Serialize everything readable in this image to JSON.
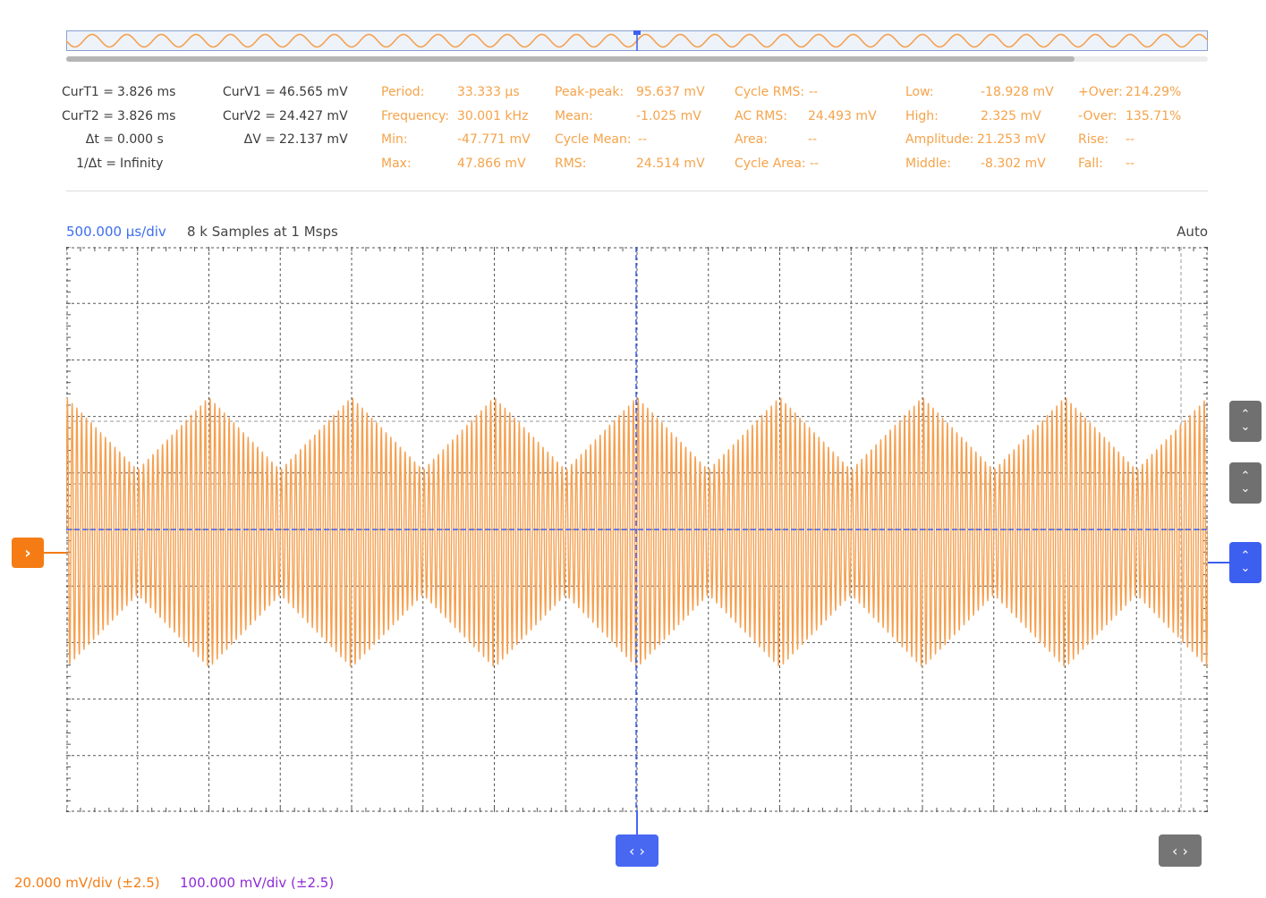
{
  "measurements": {
    "cursors": [
      {
        "label": "CurT1 =",
        "value": "3.826 ms"
      },
      {
        "label": "CurT2 =",
        "value": "3.826 ms"
      },
      {
        "label": "Δt =",
        "value": "0.000 s"
      },
      {
        "label": "1/Δt =",
        "value": "Infinity"
      }
    ],
    "voltage_cursors": [
      {
        "label": "CurV1 =",
        "value": "46.565 mV"
      },
      {
        "label": "CurV2 =",
        "value": "24.427 mV"
      },
      {
        "label": "ΔV =",
        "value": "22.137 mV"
      }
    ],
    "col1": [
      {
        "label": "Period:",
        "value": "33.333 µs"
      },
      {
        "label": "Frequency:",
        "value": "30.001 kHz"
      },
      {
        "label": "Min:",
        "value": "-47.771 mV"
      },
      {
        "label": "Max:",
        "value": "47.866 mV"
      }
    ],
    "col2": [
      {
        "label": "Peak-peak:",
        "value": "95.637 mV"
      },
      {
        "label": "Mean:",
        "value": "-1.025 mV"
      },
      {
        "label": "Cycle Mean:",
        "value": "--"
      },
      {
        "label": "RMS:",
        "value": "24.514 mV"
      }
    ],
    "col3": [
      {
        "label": "Cycle RMS:",
        "value": "--"
      },
      {
        "label": "AC RMS:",
        "value": "24.493 mV"
      },
      {
        "label": "Area:",
        "value": "--"
      },
      {
        "label": "Cycle Area:",
        "value": "--"
      }
    ],
    "col4": [
      {
        "label": "Low:",
        "value": "-18.928 mV"
      },
      {
        "label": "High:",
        "value": "2.325 mV"
      },
      {
        "label": "Amplitude:",
        "value": "21.253 mV"
      },
      {
        "label": "Middle:",
        "value": "-8.302 mV"
      }
    ],
    "col5": [
      {
        "label": "+Over:",
        "value": "214.29%"
      },
      {
        "label": "-Over:",
        "value": "135.71%"
      },
      {
        "label": "Rise:",
        "value": "--"
      },
      {
        "label": "Fall:",
        "value": "--"
      }
    ]
  },
  "scope": {
    "timebase": "500.000 µs/div",
    "samples": "8 k Samples at 1 Msps",
    "trigger_mode": "Auto"
  },
  "handles": {
    "channel": "›",
    "step": "⌃⌄",
    "horizontal": "‹ ›"
  },
  "channels": [
    {
      "scale": "20.000 mV/div (±2.5)",
      "color": "#f57c14"
    },
    {
      "scale": "100.000 mV/div (±2.5)",
      "color": "#8e2ad8"
    }
  ],
  "colors": {
    "trace": "#f5a050",
    "cursor": "#3d5ff0",
    "grid": "#555555"
  },
  "chart_data": {
    "type": "line",
    "title": "",
    "xlabel": "",
    "ylabel": "",
    "x_divisions": 16,
    "y_divisions": 10,
    "xlim_ms": [
      0,
      8
    ],
    "ylim_mV": [
      -100,
      100
    ],
    "series": [
      {
        "carrier_khz": 30.001,
        "envelope_period_ms": 1.0,
        "min_mV": -47.771,
        "max_mV": 47.866,
        "mean_mV": -1.025,
        "envelope_min_amplitude_mV": 22
      }
    ],
    "cursor_time_ms": 3.826,
    "offset_mV": 0
  }
}
